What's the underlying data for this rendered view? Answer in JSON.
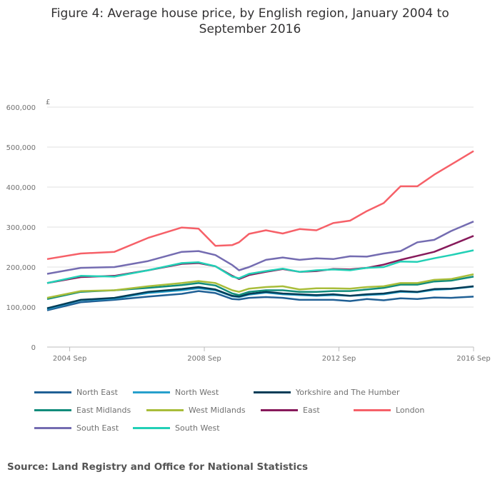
{
  "chart_data": {
    "type": "line",
    "title": "Figure 4: Average house price, by English region, January 2004 to September 2016",
    "ylabel": "£",
    "xlabel": "",
    "ylim": [
      0,
      600000
    ],
    "xlim": [
      2004.0,
      2016.67
    ],
    "yticks": [
      0,
      100000,
      200000,
      300000,
      400000,
      500000,
      600000
    ],
    "ytick_labels": [
      "0",
      "100,000",
      "200,000",
      "300,000",
      "400,000",
      "500,000",
      "600,000"
    ],
    "xticks": [
      2004.67,
      2008.67,
      2012.67,
      2016.67
    ],
    "xtick_labels": [
      "2004 Sep",
      "2008 Sep",
      "2012 Sep",
      "2016 Sep"
    ],
    "grid": true,
    "legend_position": "bottom",
    "x": [
      2004,
      2005,
      2006,
      2007,
      2008,
      2008.5,
      2009,
      2009.5,
      2009.7,
      2010,
      2010.5,
      2011,
      2011.5,
      2012,
      2012.5,
      2013,
      2013.5,
      2014,
      2014.5,
      2015,
      2015.5,
      2016,
      2016.67
    ],
    "series": [
      {
        "name": "North East",
        "color": "#206095",
        "values": [
          92000,
          112000,
          118000,
          126000,
          133000,
          140000,
          135000,
          120000,
          119000,
          123000,
          125000,
          123000,
          118000,
          118000,
          118000,
          115000,
          120000,
          117000,
          122000,
          120000,
          124000,
          123000,
          126000
        ]
      },
      {
        "name": "North West",
        "color": "#27a0cc",
        "values": [
          95000,
          117000,
          121000,
          135000,
          142000,
          147000,
          142000,
          127000,
          125000,
          131000,
          136000,
          132000,
          130000,
          128000,
          130000,
          128000,
          130000,
          132000,
          138000,
          137000,
          143000,
          145000,
          151000
        ]
      },
      {
        "name": "Yorkshire and The Humber",
        "color": "#003c57",
        "values": [
          97000,
          118000,
          123000,
          138000,
          145000,
          150000,
          144000,
          128000,
          126000,
          133000,
          138000,
          134000,
          132000,
          130000,
          132000,
          128000,
          132000,
          134000,
          140000,
          138000,
          145000,
          146000,
          152000
        ]
      },
      {
        "name": "East Midlands",
        "color": "#118c7b",
        "values": [
          120000,
          138000,
          142000,
          148000,
          155000,
          160000,
          154000,
          134000,
          130000,
          138000,
          142000,
          142000,
          138000,
          138000,
          140000,
          140000,
          144000,
          148000,
          156000,
          156000,
          164000,
          166000,
          176000
        ]
      },
      {
        "name": "West Midlands",
        "color": "#a8bd3a",
        "values": [
          123000,
          140000,
          142000,
          152000,
          160000,
          165000,
          160000,
          142000,
          138000,
          146000,
          150000,
          152000,
          144000,
          147000,
          147000,
          146000,
          150000,
          152000,
          160000,
          160000,
          168000,
          170000,
          182000
        ]
      },
      {
        "name": "East",
        "color": "#871a5b",
        "values": [
          160000,
          175000,
          178000,
          192000,
          208000,
          210000,
          202000,
          178000,
          170000,
          180000,
          188000,
          195000,
          188000,
          190000,
          195000,
          194000,
          198000,
          206000,
          218000,
          228000,
          238000,
          255000,
          278000
        ]
      },
      {
        "name": "London",
        "color": "#f66068",
        "values": [
          220000,
          234000,
          238000,
          273000,
          299000,
          296000,
          253000,
          255000,
          262000,
          283000,
          292000,
          284000,
          295000,
          292000,
          310000,
          316000,
          340000,
          360000,
          402000,
          402000,
          431000,
          456000,
          490000
        ]
      },
      {
        "name": "South East",
        "color": "#746cb1",
        "values": [
          183000,
          198000,
          200000,
          215000,
          238000,
          240000,
          230000,
          205000,
          192000,
          200000,
          218000,
          224000,
          218000,
          222000,
          220000,
          227000,
          226000,
          234000,
          240000,
          262000,
          268000,
          290000,
          314000
        ]
      },
      {
        "name": "South West",
        "color": "#22d0b6",
        "values": [
          160000,
          178000,
          176000,
          192000,
          210000,
          212000,
          202000,
          176000,
          172000,
          183000,
          190000,
          196000,
          188000,
          192000,
          194000,
          192000,
          198000,
          200000,
          214000,
          213000,
          222000,
          230000,
          242000
        ]
      }
    ],
    "source": "Source: Land Registry and Office for National Statistics"
  }
}
